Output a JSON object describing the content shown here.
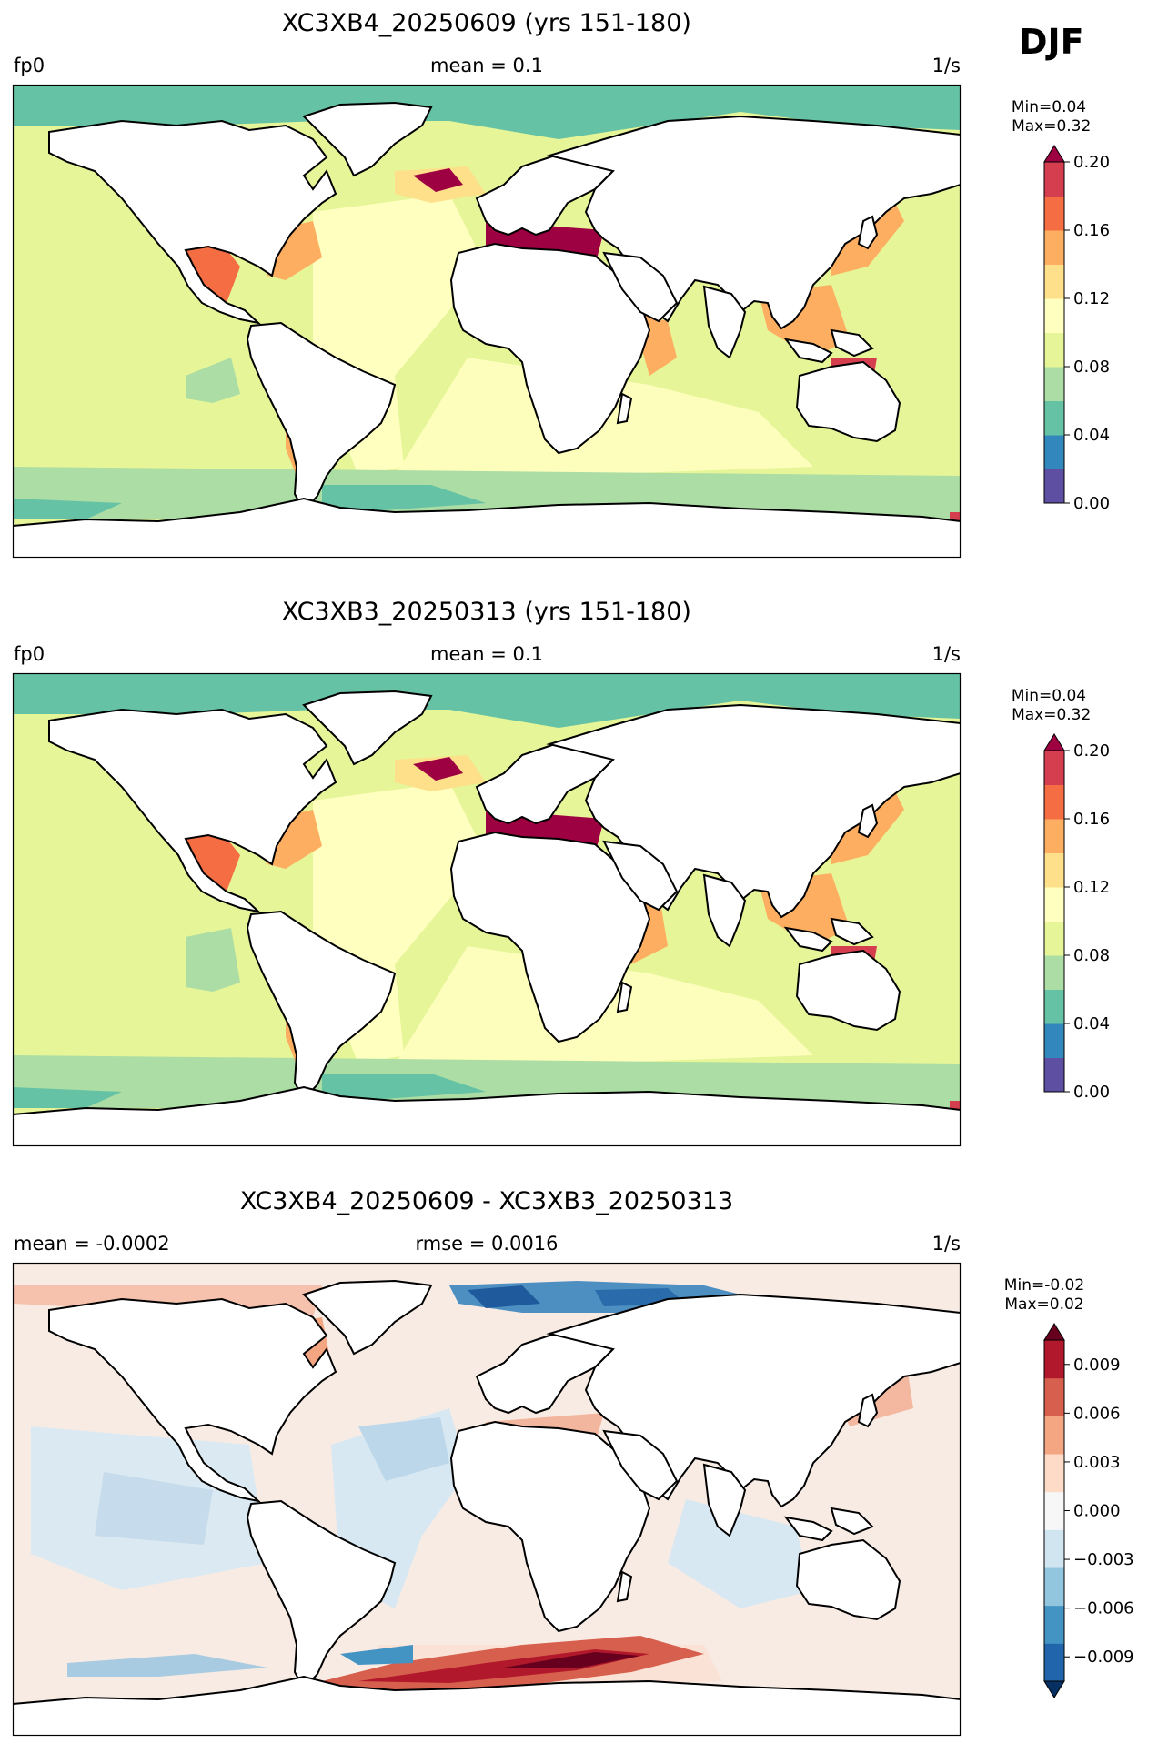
{
  "season": "DJF",
  "panels": [
    {
      "title": "XC3XB4_20250609 (yrs 151-180)",
      "left_label": "fp0",
      "center_label": "mean = 0.1",
      "right_label": "1/s",
      "minmax": "Min=0.04\n Max=0.32",
      "colorbar": {
        "ticks": [
          "0.00",
          "0.04",
          "0.08",
          "0.12",
          "0.16",
          "0.20"
        ],
        "colors": [
          "#5e4fa2",
          "#3288bd",
          "#66c2a5",
          "#abdda4",
          "#e6f598",
          "#ffffbf",
          "#fee08b",
          "#fdae61",
          "#f46d43",
          "#d53e4f",
          "#9e0142"
        ]
      }
    },
    {
      "title": "XC3XB3_20250313 (yrs 151-180)",
      "left_label": "fp0",
      "center_label": "mean = 0.1",
      "right_label": "1/s",
      "minmax": "Min=0.04\n Max=0.32",
      "colorbar": {
        "ticks": [
          "0.00",
          "0.04",
          "0.08",
          "0.12",
          "0.16",
          "0.20"
        ],
        "colors": [
          "#5e4fa2",
          "#3288bd",
          "#66c2a5",
          "#abdda4",
          "#e6f598",
          "#ffffbf",
          "#fee08b",
          "#fdae61",
          "#f46d43",
          "#d53e4f",
          "#9e0142"
        ]
      }
    },
    {
      "title": "XC3XB4_20250609 - XC3XB3_20250313",
      "left_label": "mean = -0.0002",
      "center_label": "rmse = 0.0016",
      "right_label": "1/s",
      "minmax": "Min=-0.02\nMax=0.02",
      "colorbar": {
        "ticks": [
          "−0.009",
          "−0.006",
          "−0.003",
          "0.000",
          "0.003",
          "0.006",
          "0.009"
        ],
        "colors": [
          "#053061",
          "#2166ac",
          "#4393c3",
          "#92c5de",
          "#d1e5f0",
          "#f7f7f7",
          "#fddbc7",
          "#f4a582",
          "#d6604d",
          "#b2182b",
          "#67001f"
        ]
      }
    }
  ]
}
